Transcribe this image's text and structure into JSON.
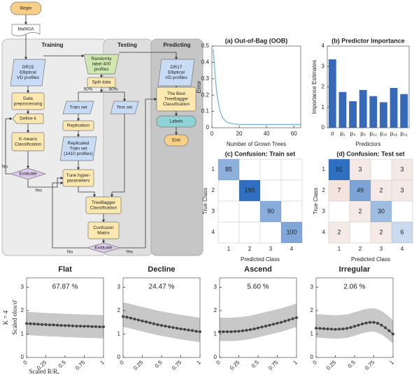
{
  "flowchart": {
    "regions": [
      "Training",
      "Testing",
      "Predicting"
    ],
    "nodes": [
      {
        "lines": [
          "Begin"
        ]
      },
      {
        "lines": [
          "MaNGA"
        ]
      },
      {
        "lines": [
          "DR15",
          "Elliptical",
          "VD profiles"
        ]
      },
      {
        "lines": [
          "Randomly",
          "label 400",
          "profiles"
        ]
      },
      {
        "lines": [
          "Split data"
        ]
      },
      {
        "lines": [
          "Data",
          "preprocessing"
        ]
      },
      {
        "lines": [
          "Define k"
        ]
      },
      {
        "lines": [
          "K-means",
          "Classification"
        ]
      },
      {
        "lines": [
          "Evaluate"
        ]
      },
      {
        "lines": [
          "Train set"
        ]
      },
      {
        "lines": [
          "Test set"
        ]
      },
      {
        "lines": [
          "Replication"
        ]
      },
      {
        "lines": [
          "Replicated",
          "Train set",
          "(1410 profiles)"
        ]
      },
      {
        "lines": [
          "Tune hyper-",
          "parameters"
        ]
      },
      {
        "lines": [
          "TreeBagger",
          "Classification"
        ]
      },
      {
        "lines": [
          "Confusion",
          "Matrix"
        ]
      },
      {
        "lines": [
          "Evaluate"
        ]
      },
      {
        "lines": [
          "DR17",
          "Elliptical",
          "VD profiles"
        ]
      },
      {
        "lines": [
          "The Best",
          "TreeBagger",
          "Classification"
        ]
      },
      {
        "lines": [
          "Labels"
        ]
      },
      {
        "lines": [
          "End"
        ]
      }
    ],
    "edge_labels": [
      "50%",
      "50%",
      "No",
      "Yes",
      "No",
      "Yes"
    ]
  },
  "chart_data": [
    {
      "type": "line",
      "title": "(a) Out-of-Bag (OOB)",
      "xlabel": "Number of Grown Trees",
      "ylabel": "Error",
      "x": [
        1,
        2,
        3,
        4,
        5,
        6,
        7,
        8,
        10,
        12,
        15,
        20,
        25,
        30,
        40,
        50,
        60,
        65
      ],
      "series": [
        {
          "color": "#7fb9d9",
          "values": [
            0.48,
            0.36,
            0.26,
            0.19,
            0.14,
            0.1,
            0.08,
            0.06,
            0.04,
            0.03,
            0.025,
            0.02,
            0.02,
            0.02,
            0.02,
            0.02,
            0.02,
            0.02
          ]
        }
      ],
      "xlim": [
        0,
        65
      ],
      "xticks": [
        0,
        20,
        40,
        60
      ],
      "ylim": [
        0,
        0.5
      ],
      "yticks": [
        0,
        0.1,
        0.2,
        0.3,
        0.4,
        0.5
      ]
    },
    {
      "type": "bar",
      "title": "(b) Predictor Importance",
      "xlabel": "Predictors",
      "ylabel": "Importance Estimates",
      "categories": [
        "σ",
        "p₁",
        "p₄",
        "p₉",
        "p₁₂",
        "p₁₅",
        "p₁₈",
        "p₂₁"
      ],
      "values": [
        3.35,
        1.75,
        1.3,
        1.85,
        1.55,
        1.25,
        1.95,
        1.65
      ],
      "color": "#3669b8",
      "ylim": [
        0,
        4
      ],
      "yticks": [
        0,
        1,
        2,
        3,
        4
      ]
    },
    {
      "type": "heatmap",
      "title": "(c) Confusion: Train set",
      "xlabel": "Predicted Class",
      "ylabel": "True Class",
      "x_categories": [
        "1",
        "2",
        "3",
        "4"
      ],
      "y_categories": [
        "1",
        "2",
        "3",
        "4"
      ],
      "values": [
        [
          85,
          null,
          null,
          null
        ],
        [
          null,
          195,
          null,
          null
        ],
        [
          null,
          null,
          90,
          null
        ],
        [
          null,
          null,
          null,
          100
        ]
      ],
      "diagonal_color": "#2f6fbf",
      "off_diagonal_color": "#e8c9c0"
    },
    {
      "type": "heatmap",
      "title": "(d) Confusion: Test set",
      "xlabel": "Predicted Class",
      "ylabel": "True Class",
      "x_categories": [
        "1",
        "2",
        "3",
        "4"
      ],
      "y_categories": [
        "1",
        "2",
        "3",
        "4"
      ],
      "values": [
        [
          91,
          3,
          null,
          3
        ],
        [
          7,
          49,
          2,
          3
        ],
        [
          null,
          2,
          30,
          null
        ],
        [
          2,
          null,
          2,
          6
        ]
      ],
      "diagonal_color": "#2f6fbf",
      "off_diagonal_color": "#e8c9c0"
    },
    {
      "type": "line",
      "title": "Flat",
      "annotation": "67.87 %",
      "row_label": "K = 4",
      "ylabel": "Scaled σlos/σ̄",
      "xlabel": "Scaled R/Rₑ",
      "x": [
        0,
        0.05,
        0.1,
        0.15,
        0.2,
        0.25,
        0.3,
        0.35,
        0.4,
        0.45,
        0.5,
        0.55,
        0.6,
        0.65,
        0.7,
        0.75,
        0.8,
        0.85,
        0.9,
        0.95,
        1
      ],
      "series": [
        {
          "color": "#444444",
          "values": [
            1.45,
            1.44,
            1.43,
            1.42,
            1.41,
            1.4,
            1.39,
            1.39,
            1.38,
            1.37,
            1.36,
            1.36,
            1.35,
            1.34,
            1.34,
            1.33,
            1.33,
            1.32,
            1.32,
            1.31,
            1.31
          ]
        }
      ],
      "envelope_color": "#c8c8c8",
      "envelope_lower": [
        0.95,
        0.95,
        0.94,
        0.93,
        0.92,
        0.91,
        0.9,
        0.9,
        0.89,
        0.88,
        0.87,
        0.87,
        0.86,
        0.85,
        0.85,
        0.84,
        0.84,
        0.83,
        0.83,
        0.82,
        0.82
      ],
      "envelope_upper": [
        1.95,
        1.94,
        1.93,
        1.92,
        1.91,
        1.9,
        1.89,
        1.89,
        1.88,
        1.87,
        1.86,
        1.86,
        1.85,
        1.84,
        1.84,
        1.83,
        1.83,
        1.82,
        1.82,
        1.81,
        1.81
      ],
      "markers": true,
      "xlim": [
        0,
        1
      ],
      "xticks": [
        0,
        0.25,
        0.5,
        0.75,
        1
      ],
      "ylim": [
        0,
        3.4
      ],
      "yticks": [
        0,
        1,
        2,
        3
      ]
    },
    {
      "type": "line",
      "title": "Decline",
      "annotation": "24.47 %",
      "x": [
        0,
        0.05,
        0.1,
        0.15,
        0.2,
        0.25,
        0.3,
        0.35,
        0.4,
        0.45,
        0.5,
        0.55,
        0.6,
        0.65,
        0.7,
        0.75,
        0.8,
        0.85,
        0.9,
        0.95,
        1
      ],
      "series": [
        {
          "color": "#444444",
          "values": [
            1.75,
            1.72,
            1.68,
            1.64,
            1.6,
            1.56,
            1.52,
            1.48,
            1.44,
            1.4,
            1.37,
            1.34,
            1.31,
            1.28,
            1.25,
            1.22,
            1.2,
            1.17,
            1.15,
            1.12,
            1.1
          ]
        }
      ],
      "envelope_color": "#c8c8c8",
      "envelope_lower": [
        1.3,
        1.27,
        1.23,
        1.19,
        1.15,
        1.11,
        1.07,
        1.03,
        0.99,
        0.95,
        0.92,
        0.89,
        0.86,
        0.83,
        0.8,
        0.77,
        0.75,
        0.72,
        0.7,
        0.67,
        0.65
      ],
      "envelope_upper": [
        2.35,
        2.32,
        2.28,
        2.24,
        2.2,
        2.16,
        2.12,
        2.08,
        2.04,
        2.0,
        1.97,
        1.94,
        1.91,
        1.88,
        1.85,
        1.82,
        1.8,
        1.77,
        1.75,
        1.72,
        1.7
      ],
      "markers": true,
      "xlim": [
        0,
        1
      ],
      "xticks": [
        0,
        0.25,
        0.5,
        0.75,
        1
      ],
      "ylim": [
        0,
        3.4
      ],
      "yticks": [
        0,
        1,
        2,
        3
      ]
    },
    {
      "type": "line",
      "title": "Ascend",
      "annotation": "5.60 %",
      "x": [
        0,
        0.05,
        0.1,
        0.15,
        0.2,
        0.25,
        0.3,
        0.35,
        0.4,
        0.45,
        0.5,
        0.55,
        0.6,
        0.65,
        0.7,
        0.75,
        0.8,
        0.85,
        0.9,
        0.95,
        1
      ],
      "series": [
        {
          "color": "#444444",
          "values": [
            1.1,
            1.1,
            1.1,
            1.1,
            1.11,
            1.12,
            1.14,
            1.16,
            1.19,
            1.22,
            1.26,
            1.3,
            1.34,
            1.38,
            1.42,
            1.46,
            1.5,
            1.55,
            1.6,
            1.65,
            1.7
          ]
        }
      ],
      "envelope_color": "#c8c8c8",
      "envelope_lower": [
        0.7,
        0.7,
        0.7,
        0.7,
        0.71,
        0.72,
        0.74,
        0.76,
        0.79,
        0.82,
        0.86,
        0.9,
        0.94,
        0.98,
        1.02,
        1.06,
        1.1,
        1.15,
        1.2,
        1.25,
        1.3
      ],
      "envelope_upper": [
        1.7,
        1.7,
        1.7,
        1.7,
        1.71,
        1.72,
        1.74,
        1.76,
        1.79,
        1.82,
        1.86,
        1.9,
        1.94,
        1.98,
        2.02,
        2.06,
        2.1,
        2.15,
        2.2,
        2.25,
        2.3
      ],
      "markers": true,
      "xlim": [
        0,
        1
      ],
      "xticks": [
        0,
        0.25,
        0.5,
        0.75,
        1
      ],
      "ylim": [
        0,
        3.4
      ],
      "yticks": [
        0,
        1,
        2,
        3
      ]
    },
    {
      "type": "line",
      "title": "Irregular",
      "annotation": "2.06 %",
      "x": [
        0,
        0.05,
        0.1,
        0.15,
        0.2,
        0.25,
        0.3,
        0.35,
        0.4,
        0.45,
        0.5,
        0.55,
        0.6,
        0.65,
        0.7,
        0.75,
        0.8,
        0.85,
        0.9,
        0.95,
        1
      ],
      "series": [
        {
          "color": "#444444",
          "values": [
            1.25,
            1.24,
            1.23,
            1.22,
            1.21,
            1.2,
            1.21,
            1.22,
            1.24,
            1.28,
            1.33,
            1.38,
            1.43,
            1.47,
            1.5,
            1.5,
            1.46,
            1.38,
            1.27,
            1.14,
            1.0
          ]
        }
      ],
      "envelope_color": "#c8c8c8",
      "envelope_lower": [
        0.85,
        0.84,
        0.83,
        0.82,
        0.81,
        0.8,
        0.81,
        0.82,
        0.84,
        0.88,
        0.93,
        0.98,
        1.03,
        1.07,
        1.1,
        1.1,
        1.06,
        0.98,
        0.87,
        0.74,
        0.6
      ],
      "envelope_upper": [
        1.85,
        1.84,
        1.83,
        1.82,
        1.81,
        1.8,
        1.81,
        1.82,
        1.84,
        1.88,
        1.93,
        1.98,
        2.03,
        2.07,
        2.1,
        2.1,
        2.06,
        1.98,
        1.87,
        1.74,
        1.6
      ],
      "markers": true,
      "xlim": [
        0,
        1
      ],
      "xticks": [
        0,
        0.25,
        0.5,
        0.75,
        1
      ],
      "ylim": [
        0,
        3.4
      ],
      "yticks": [
        0,
        1,
        2,
        3
      ]
    }
  ]
}
